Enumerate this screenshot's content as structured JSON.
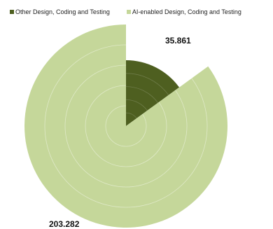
{
  "chart_data": {
    "type": "pie",
    "variant": "exploded-radial",
    "categories": [
      "Other Design, Coding and Testing",
      "AI-enabled Design, Coding and Testing"
    ],
    "values": [
      35.861,
      203.282
    ],
    "value_labels": [
      "35.861",
      "203.282"
    ],
    "colors": [
      "#4e5f20",
      "#c5d79a"
    ],
    "legend_position": "top",
    "grid": true
  }
}
